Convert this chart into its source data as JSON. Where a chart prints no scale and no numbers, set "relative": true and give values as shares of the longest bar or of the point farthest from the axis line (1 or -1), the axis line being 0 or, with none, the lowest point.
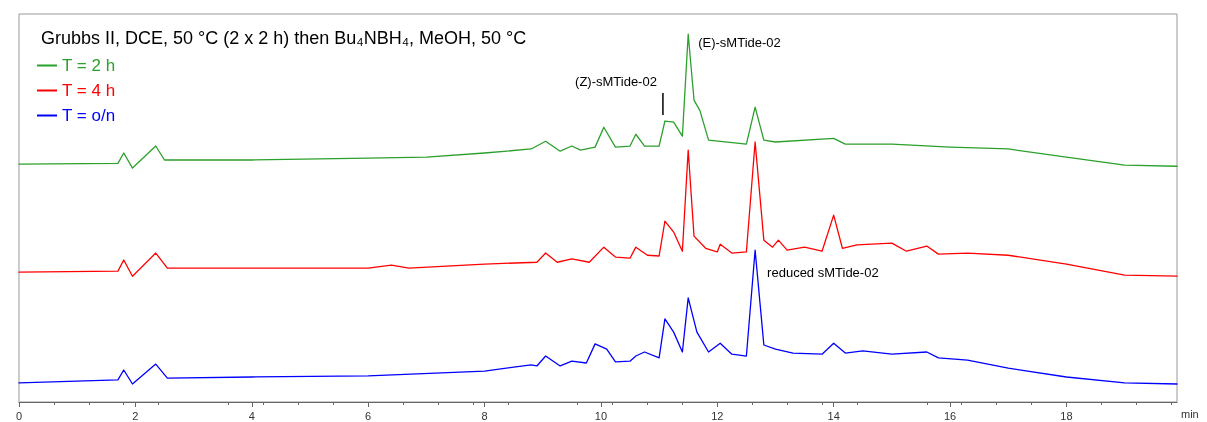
{
  "chart_data": {
    "type": "line",
    "title": "Grubbs II, DCE, 50 °C (2 x 2 h) then Bu₄NBH₄, MeOH, 50 °C",
    "xlabel": "min",
    "relative": true,
    "xlim": [
      0,
      19.9
    ],
    "xticks": [
      0,
      2,
      4,
      6,
      8,
      10,
      12,
      14,
      16,
      18
    ],
    "grid": false,
    "legend": "top left",
    "marker": "none",
    "line_style": "solid",
    "annotations": [
      {
        "text": "(E)-sMTide-02",
        "x": 11.5,
        "y": 1
      },
      {
        "text": "(Z)-sMTide-02",
        "x": 11.1,
        "y": 0.764
      },
      {
        "text": "reduced sMTide-02",
        "x": 12.65,
        "y": 0.413
      }
    ],
    "series": [
      {
        "name": "T = 2 h",
        "color": "#2ca02c",
        "x": [
          0,
          1.7,
          1.8,
          1.95,
          2.35,
          2.5,
          4,
          6,
          7,
          8,
          8.8,
          9.05,
          9.3,
          9.5,
          9.65,
          9.9,
          10.05,
          10.25,
          10.5,
          10.6,
          10.75,
          11.0,
          11.1,
          11.25,
          11.4,
          11.5,
          11.6,
          11.7,
          11.85,
          12.5,
          12.65,
          12.8,
          13,
          14,
          14.2,
          15,
          16,
          17,
          18,
          19,
          19.9
        ],
        "values": [
          0.647,
          0.649,
          0.677,
          0.636,
          0.696,
          0.658,
          0.658,
          0.663,
          0.666,
          0.677,
          0.688,
          0.709,
          0.682,
          0.696,
          0.685,
          0.693,
          0.747,
          0.693,
          0.696,
          0.728,
          0.696,
          0.696,
          0.764,
          0.761,
          0.723,
          1,
          0.821,
          0.793,
          0.712,
          0.701,
          0.802,
          0.712,
          0.707,
          0.717,
          0.701,
          0.701,
          0.693,
          0.688,
          0.666,
          0.644,
          0.641
        ]
      },
      {
        "name": "T = 4 h",
        "color": "#ff0000",
        "x": [
          0,
          1.7,
          1.8,
          1.95,
          2.35,
          2.55,
          6,
          6.4,
          6.7,
          8,
          8.9,
          9.05,
          9.25,
          9.5,
          9.8,
          10.05,
          10.25,
          10.5,
          10.6,
          10.8,
          11,
          11.1,
          11.25,
          11.4,
          11.5,
          11.6,
          11.8,
          12,
          12.05,
          12.25,
          12.5,
          12.65,
          12.8,
          12.95,
          13.05,
          13.2,
          13.5,
          13.8,
          14,
          14.15,
          14.4,
          15,
          15.25,
          15.6,
          15.8,
          16.3,
          17,
          18,
          19,
          19.9
        ],
        "values": [
          0.353,
          0.356,
          0.386,
          0.342,
          0.405,
          0.364,
          0.364,
          0.372,
          0.364,
          0.375,
          0.38,
          0.405,
          0.38,
          0.389,
          0.38,
          0.421,
          0.394,
          0.391,
          0.421,
          0.399,
          0.397,
          0.492,
          0.462,
          0.41,
          0.685,
          0.451,
          0.418,
          0.408,
          0.429,
          0.405,
          0.408,
          0.707,
          0.44,
          0.421,
          0.44,
          0.413,
          0.421,
          0.41,
          0.508,
          0.418,
          0.427,
          0.432,
          0.41,
          0.424,
          0.402,
          0.405,
          0.399,
          0.375,
          0.345,
          0.342
        ]
      },
      {
        "name": "T = o/n",
        "color": "#0000ff",
        "x": [
          0,
          1.7,
          1.8,
          1.95,
          2.35,
          2.55,
          4,
          6,
          8,
          8.8,
          8.9,
          9.05,
          9.3,
          9.5,
          9.75,
          9.9,
          10.1,
          10.25,
          10.5,
          10.6,
          10.75,
          11,
          11.1,
          11.25,
          11.4,
          11.5,
          11.65,
          11.85,
          12.05,
          12.25,
          12.5,
          12.65,
          12.8,
          13,
          13.3,
          13.8,
          14,
          14.2,
          14.5,
          15,
          15.6,
          15.8,
          16.3,
          17,
          18,
          19,
          19.9
        ],
        "values": [
          0.052,
          0.06,
          0.087,
          0.049,
          0.103,
          0.065,
          0.068,
          0.071,
          0.084,
          0.101,
          0.098,
          0.125,
          0.098,
          0.111,
          0.106,
          0.158,
          0.144,
          0.109,
          0.111,
          0.125,
          0.136,
          0.12,
          0.226,
          0.19,
          0.136,
          0.283,
          0.19,
          0.136,
          0.16,
          0.13,
          0.125,
          0.413,
          0.155,
          0.144,
          0.133,
          0.13,
          0.16,
          0.133,
          0.139,
          0.13,
          0.136,
          0.12,
          0.114,
          0.092,
          0.068,
          0.052,
          0.049
        ]
      }
    ]
  }
}
